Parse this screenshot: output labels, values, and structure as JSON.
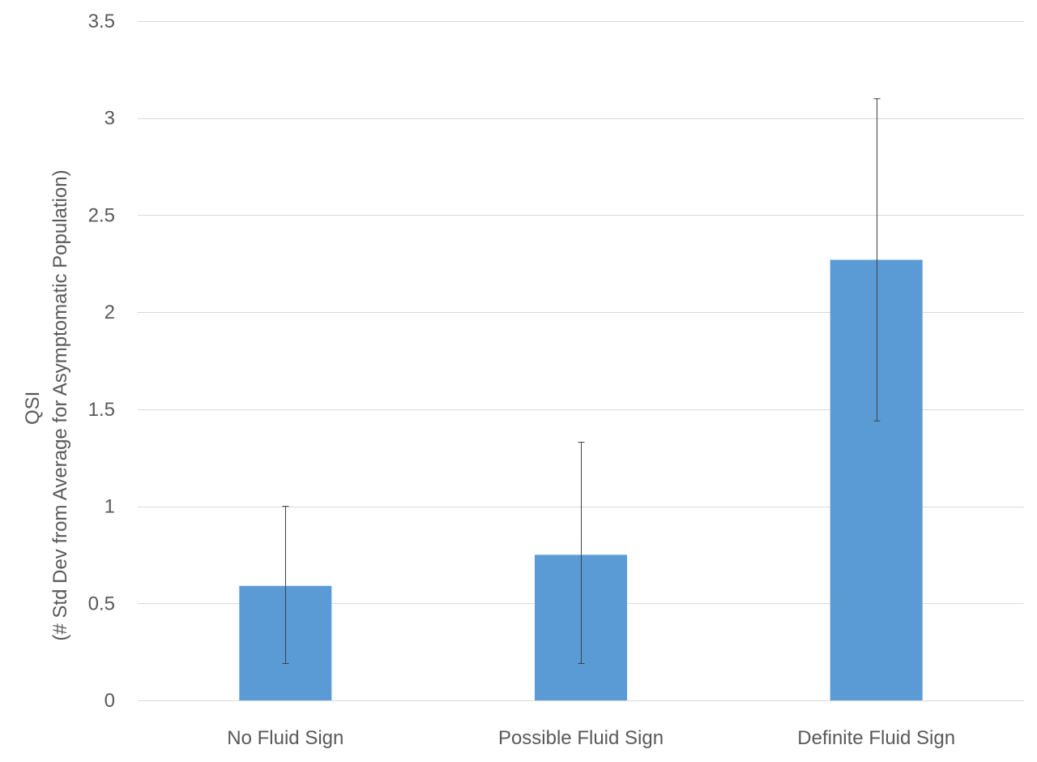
{
  "chart_data": {
    "type": "bar",
    "title": "",
    "xlabel": "",
    "ylabel_lines": [
      "QSI",
      "(# Std Dev from Average for Asymptomatic Population)"
    ],
    "categories": [
      "No Fluid Sign",
      "Possible Fluid Sign",
      "Definite Fluid Sign"
    ],
    "values": [
      0.59,
      0.75,
      2.27
    ],
    "error_low": [
      0.19,
      0.19,
      1.44
    ],
    "error_high": [
      1.0,
      1.33,
      3.1
    ],
    "ylim": [
      0,
      3.5
    ],
    "yticks": [
      "0",
      "0.5",
      "1",
      "1.5",
      "2",
      "2.5",
      "3",
      "3.5"
    ],
    "ytick_values": [
      0,
      0.5,
      1,
      1.5,
      2,
      2.5,
      3,
      3.5
    ],
    "grid": true,
    "legend": "none",
    "bar_color": "#5b9bd5",
    "grid_color": "#d9d9d9",
    "error_bar_color": "#404040"
  }
}
